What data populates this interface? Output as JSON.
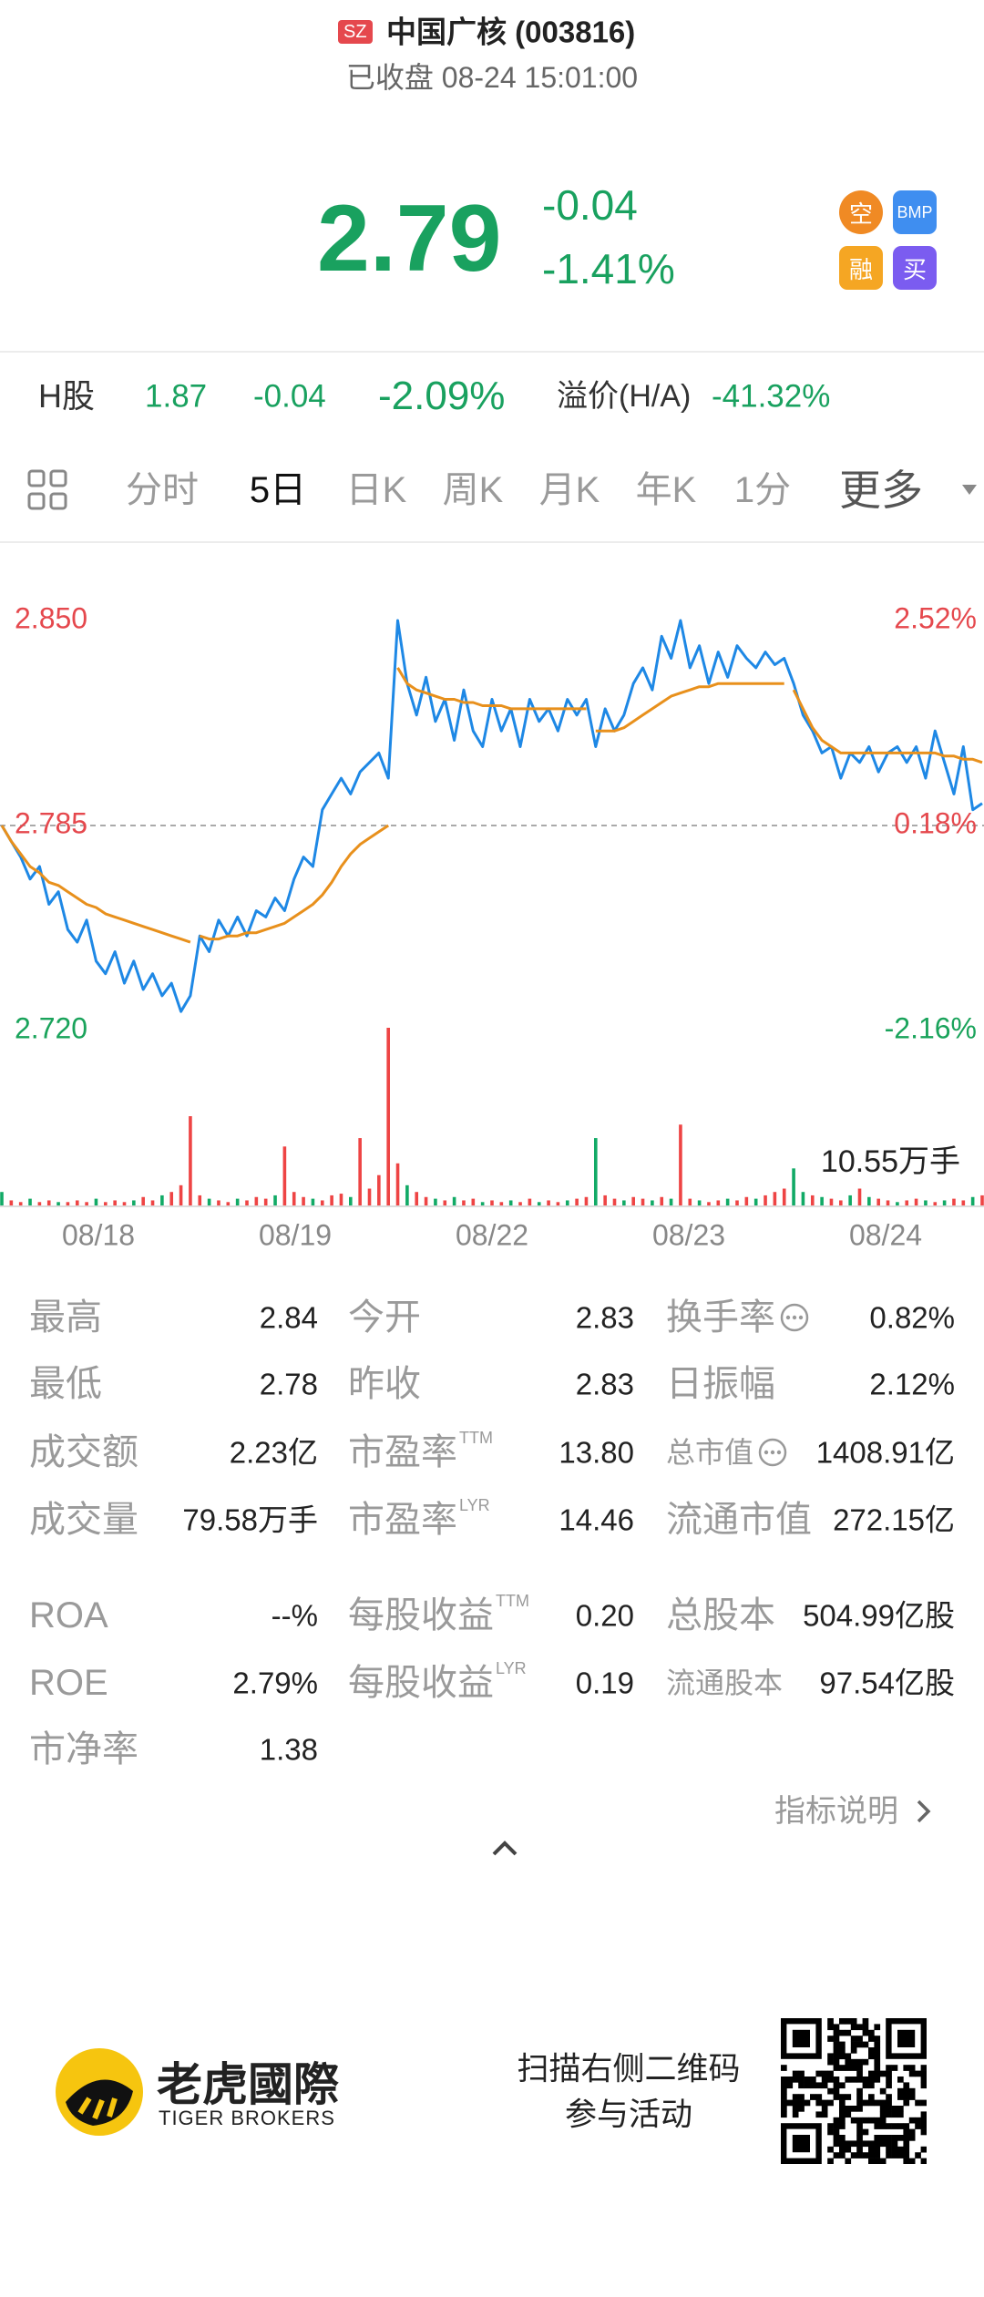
{
  "header": {
    "market": "SZ",
    "title": "中国广核 (003816)",
    "status": "已收盘 08-24 15:01:00"
  },
  "quote": {
    "price": "2.79",
    "change": "-0.04",
    "change_pct": "-1.41%",
    "badges": [
      "空",
      "BMP",
      "融",
      "买"
    ]
  },
  "h_share": {
    "label": "H股",
    "price": "1.87",
    "change": "-0.04",
    "change_pct": "-2.09%",
    "premium_label": "溢价(H/A)",
    "premium": "-41.32%"
  },
  "tabs": [
    "分时",
    "5日",
    "日K",
    "周K",
    "月K",
    "年K",
    "1分",
    "更多"
  ],
  "active_tab": 1,
  "chart_data": {
    "type": "line",
    "days": [
      "08/18",
      "08/19",
      "08/22",
      "08/23",
      "08/24"
    ],
    "points_per_day": 21,
    "ylim": [
      2.72,
      2.85
    ],
    "yticks": [
      {
        "value": 2.85,
        "label": "2.850"
      },
      {
        "value": 2.785,
        "label": "2.785"
      },
      {
        "value": 2.72,
        "label": "2.720"
      }
    ],
    "y2lim": [
      -2.16,
      2.52
    ],
    "y2ticks": [
      {
        "value": 2.52,
        "label": "2.52%"
      },
      {
        "value": 0.18,
        "label": "0.18%"
      },
      {
        "value": -2.16,
        "label": "-2.16%"
      }
    ],
    "up_color": "#e5484d",
    "down_color": "#1aa35b",
    "series": [
      {
        "color": "#1e88e5",
        "values": [
          2.785,
          2.78,
          2.775,
          2.768,
          2.772,
          2.76,
          2.764,
          2.752,
          2.748,
          2.755,
          2.742,
          2.738,
          2.745,
          2.735,
          2.742,
          2.733,
          2.738,
          2.731,
          2.735,
          2.726,
          2.731,
          2.75,
          2.745,
          2.755,
          2.75,
          2.756,
          2.75,
          2.758,
          2.756,
          2.762,
          2.758,
          2.768,
          2.775,
          2.772,
          2.79,
          2.795,
          2.8,
          2.795,
          2.802,
          2.805,
          2.808,
          2.8,
          2.85,
          2.83,
          2.82,
          2.832,
          2.818,
          2.825,
          2.812,
          2.828,
          2.815,
          2.81,
          2.825,
          2.815,
          2.822,
          2.81,
          2.825,
          2.818,
          2.822,
          2.815,
          2.825,
          2.82,
          2.825,
          2.81,
          2.822,
          2.815,
          2.82,
          2.83,
          2.835,
          2.828,
          2.845,
          2.838,
          2.85,
          2.835,
          2.842,
          2.83,
          2.84,
          2.832,
          2.842,
          2.838,
          2.835,
          2.84,
          2.836,
          2.838,
          2.83,
          2.82,
          2.815,
          2.808,
          2.81,
          2.8,
          2.808,
          2.805,
          2.81,
          2.802,
          2.808,
          2.81,
          2.805,
          2.81,
          2.8,
          2.815,
          2.805,
          2.795,
          2.81,
          2.79,
          2.792
        ]
      },
      {
        "color": "#e8901c",
        "values": [
          2.785,
          2.78,
          2.776,
          2.772,
          2.77,
          2.767,
          2.766,
          2.764,
          2.762,
          2.76,
          2.759,
          2.757,
          2.756,
          2.755,
          2.754,
          2.753,
          2.752,
          2.751,
          2.75,
          2.749,
          2.748,
          2.75,
          2.749,
          2.749,
          2.75,
          2.75,
          2.751,
          2.751,
          2.752,
          2.753,
          2.754,
          2.756,
          2.758,
          2.76,
          2.763,
          2.767,
          2.772,
          2.776,
          2.779,
          2.781,
          2.783,
          2.785,
          2.835,
          2.83,
          2.828,
          2.827,
          2.826,
          2.825,
          2.825,
          2.824,
          2.824,
          2.823,
          2.823,
          2.823,
          2.822,
          2.822,
          2.822,
          2.822,
          2.822,
          2.822,
          2.822,
          2.822,
          2.822,
          2.815,
          2.815,
          2.815,
          2.816,
          2.818,
          2.82,
          2.822,
          2.824,
          2.826,
          2.827,
          2.828,
          2.829,
          2.829,
          2.83,
          2.83,
          2.83,
          2.83,
          2.83,
          2.83,
          2.83,
          2.83,
          2.828,
          2.822,
          2.816,
          2.812,
          2.81,
          2.808,
          2.808,
          2.808,
          2.808,
          2.808,
          2.808,
          2.808,
          2.808,
          2.808,
          2.808,
          2.808,
          2.807,
          2.807,
          2.806,
          2.806,
          2.805
        ]
      }
    ],
    "volume": {
      "ylim": [
        0,
        10.55
      ],
      "yticks": [
        {
          "value": 10.55,
          "label": "10.55万手"
        }
      ],
      "values": [
        0.8,
        0.3,
        0.2,
        0.4,
        0.2,
        0.3,
        0.2,
        0.2,
        0.3,
        0.2,
        0.4,
        0.2,
        0.3,
        0.2,
        0.3,
        0.5,
        0.3,
        0.6,
        0.8,
        1.2,
        5.3,
        0.6,
        0.4,
        0.3,
        0.2,
        0.4,
        0.3,
        0.5,
        0.4,
        0.6,
        3.5,
        0.8,
        0.5,
        0.4,
        0.3,
        0.6,
        0.7,
        0.5,
        4.0,
        1.0,
        1.8,
        10.55,
        2.5,
        1.2,
        0.8,
        0.5,
        0.4,
        0.3,
        0.5,
        0.3,
        0.4,
        0.2,
        0.3,
        0.2,
        0.3,
        0.2,
        0.4,
        0.2,
        0.3,
        0.2,
        0.3,
        0.4,
        0.5,
        4.0,
        0.6,
        0.4,
        0.3,
        0.5,
        0.4,
        0.3,
        0.5,
        0.4,
        4.8,
        0.4,
        0.3,
        0.2,
        0.3,
        0.4,
        0.3,
        0.5,
        0.4,
        0.6,
        0.8,
        1.0,
        2.2,
        0.8,
        0.6,
        0.5,
        0.4,
        0.3,
        0.6,
        1.0,
        0.5,
        0.4,
        0.3,
        0.2,
        0.3,
        0.4,
        0.3,
        0.2,
        0.3,
        0.4,
        0.3,
        0.5,
        0.6
      ],
      "colors": [
        "#1a6",
        "#e44",
        "#e44",
        "#1a6",
        "#e44",
        "#e44",
        "#1a6",
        "#e44",
        "#e44",
        "#e44",
        "#1a6",
        "#e44",
        "#e44",
        "#e44",
        "#1a6",
        "#e44",
        "#e44",
        "#1a6",
        "#e44",
        "#e44",
        "#e44",
        "#e44",
        "#1a6",
        "#e44",
        "#e44",
        "#1a6",
        "#e44",
        "#e44",
        "#e44",
        "#1a6",
        "#e44",
        "#e44",
        "#e44",
        "#1a6",
        "#e44",
        "#e44",
        "#e44",
        "#1a6",
        "#e44",
        "#e44",
        "#e44",
        "#e44",
        "#e44",
        "#1a6",
        "#e44",
        "#e44",
        "#1a6",
        "#e44",
        "#1a6",
        "#e44",
        "#e44",
        "#1a6",
        "#e44",
        "#e44",
        "#1a6",
        "#e44",
        "#e44",
        "#1a6",
        "#e44",
        "#e44",
        "#1a6",
        "#e44",
        "#e44",
        "#1a6",
        "#e44",
        "#e44",
        "#1a6",
        "#e44",
        "#e44",
        "#1a6",
        "#e44",
        "#1a6",
        "#e44",
        "#e44",
        "#1a6",
        "#e44",
        "#e44",
        "#1a6",
        "#e44",
        "#e44",
        "#1a6",
        "#e44",
        "#e44",
        "#e44",
        "#1a6",
        "#1a6",
        "#e44",
        "#1a6",
        "#e44",
        "#e44",
        "#1a6",
        "#e44",
        "#1a6",
        "#e44",
        "#e44",
        "#1a6",
        "#e44",
        "#e44",
        "#1a6",
        "#e44",
        "#1a6",
        "#e44",
        "#e44",
        "#1a6",
        "#e44"
      ]
    }
  },
  "stats": {
    "groups": [
      [
        [
          {
            "label": "最高",
            "value": "2.84"
          },
          {
            "label": "今开",
            "value": "2.83"
          },
          {
            "label": "换手率",
            "value": "0.82%",
            "info": true
          }
        ],
        [
          {
            "label": "最低",
            "value": "2.78"
          },
          {
            "label": "昨收",
            "value": "2.83"
          },
          {
            "label": "日振幅",
            "value": "2.12%"
          }
        ],
        [
          {
            "label": "成交额",
            "value": "2.23亿"
          },
          {
            "label": "市盈率",
            "sup": "TTM",
            "value": "13.80"
          },
          {
            "label": "总市值",
            "value": "1408.91亿",
            "info": true,
            "small": true
          }
        ],
        [
          {
            "label": "成交量",
            "value": "79.58万手"
          },
          {
            "label": "市盈率",
            "sup": "LYR",
            "value": "14.46"
          },
          {
            "label": "流通市值",
            "value": "272.15亿"
          }
        ]
      ],
      [
        [
          {
            "label": "ROA",
            "value": "--%"
          },
          {
            "label": "每股收益",
            "sup": "TTM",
            "value": "0.20"
          },
          {
            "label": "总股本",
            "value": "504.99亿股"
          }
        ],
        [
          {
            "label": "ROE",
            "value": "2.79%"
          },
          {
            "label": "每股收益",
            "sup": "LYR",
            "value": "0.19"
          },
          {
            "label": "流通股本",
            "value": "97.54亿股",
            "small": true
          }
        ],
        [
          {
            "label": "市净率",
            "value": "1.38"
          }
        ]
      ]
    ],
    "more": "指标说明"
  },
  "footer": {
    "brand_cn": "老虎國際",
    "brand_en": "TIGER BROKERS",
    "promo": [
      "扫描右侧二维码",
      "参与活动"
    ]
  }
}
